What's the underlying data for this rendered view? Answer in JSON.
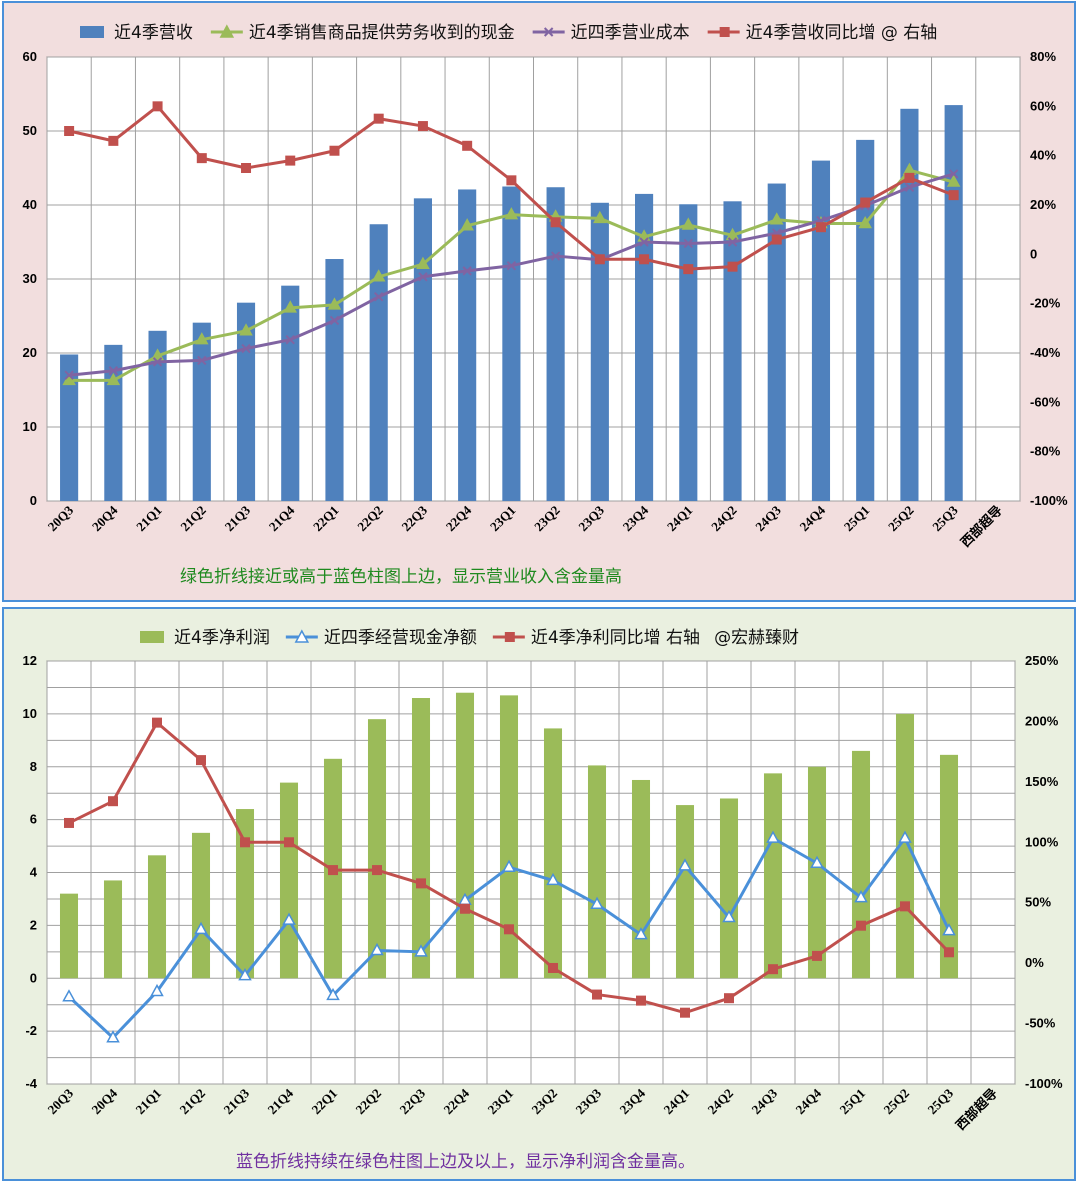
{
  "chart_data": [
    {
      "type": "bar+line",
      "categories": [
        "20Q3",
        "20Q4",
        "21Q1",
        "21Q2",
        "21Q3",
        "21Q4",
        "22Q1",
        "22Q2",
        "22Q3",
        "22Q4",
        "23Q1",
        "23Q2",
        "23Q3",
        "23Q4",
        "24Q1",
        "24Q2",
        "24Q3",
        "24Q4",
        "25Q1",
        "25Q2",
        "25Q3"
      ],
      "extra_tick": "西部超导",
      "ylim_left": [
        0,
        60
      ],
      "yticks_left": [
        0,
        10,
        20,
        30,
        40,
        50,
        60
      ],
      "ylim_right": [
        -100,
        80
      ],
      "yticks_right": [
        -100,
        -80,
        -60,
        -40,
        -20,
        0,
        20,
        40,
        60,
        80
      ],
      "yticks_right_labels": [
        "-100%",
        "-80%",
        "-60%",
        "-40%",
        "-20%",
        "0",
        "20%",
        "40%",
        "60%",
        "80%"
      ],
      "series": [
        {
          "name": "近4季营收",
          "kind": "bar",
          "axis": "left",
          "color": "#4f81bd",
          "values": [
            19.8,
            21.1,
            23.0,
            24.1,
            26.8,
            29.1,
            32.7,
            37.4,
            40.9,
            42.1,
            42.5,
            42.4,
            40.3,
            41.5,
            40.1,
            40.5,
            42.9,
            46.0,
            48.8,
            53.0,
            53.5
          ]
        },
        {
          "name": "近4季销售商品提供劳务收到的现金",
          "kind": "line",
          "axis": "left",
          "color": "#9bbb59",
          "marker": "triangle",
          "values": [
            16.3,
            16.3,
            19.6,
            21.8,
            23.0,
            26.1,
            26.5,
            30.3,
            32.0,
            37.2,
            38.7,
            38.4,
            38.2,
            35.7,
            37.3,
            35.9,
            38.0,
            37.5,
            37.5,
            44.7,
            43.1
          ]
        },
        {
          "name": "近四季营业成本",
          "kind": "line",
          "axis": "left",
          "color": "#8064a2",
          "marker": "x",
          "values": [
            17.0,
            17.6,
            18.8,
            19.0,
            20.6,
            21.8,
            24.4,
            27.6,
            30.3,
            31.1,
            31.8,
            33.1,
            32.6,
            35.0,
            34.8,
            35.0,
            36.2,
            37.9,
            39.9,
            42.4,
            44.2
          ]
        },
        {
          "name": "近4季营收同比增 @ 右轴",
          "kind": "line",
          "axis": "right",
          "color": "#c0504d",
          "marker": "square",
          "values": [
            50,
            46,
            60,
            39,
            35,
            38,
            42,
            55,
            52,
            44,
            30,
            13,
            -2,
            -2,
            -6,
            -5,
            6,
            11,
            21,
            31,
            24
          ]
        }
      ],
      "caption": "绿色折线接近或高于蓝色柱图上边，显示营业收入含金量高"
    },
    {
      "type": "bar+line",
      "categories": [
        "20Q3",
        "20Q4",
        "21Q1",
        "21Q2",
        "21Q3",
        "21Q4",
        "22Q1",
        "22Q2",
        "22Q3",
        "22Q4",
        "23Q1",
        "23Q2",
        "23Q3",
        "23Q4",
        "24Q1",
        "24Q2",
        "24Q3",
        "24Q4",
        "25Q1",
        "25Q2",
        "25Q3"
      ],
      "extra_tick": "西部超导",
      "ylim_left": [
        -4,
        12
      ],
      "yticks_left": [
        -4,
        -2,
        0,
        2,
        4,
        6,
        8,
        10,
        12
      ],
      "ylim_right": [
        -100,
        250
      ],
      "yticks_right": [
        -100,
        -50,
        0,
        50,
        100,
        150,
        200,
        250
      ],
      "yticks_right_labels": [
        "-100%",
        "-50%",
        "0%",
        "50%",
        "100%",
        "150%",
        "200%",
        "250%"
      ],
      "series": [
        {
          "name": "近4季净利润",
          "kind": "bar",
          "axis": "left",
          "color": "#9bbb59",
          "values": [
            3.2,
            3.7,
            4.65,
            5.5,
            6.4,
            7.4,
            8.3,
            9.8,
            10.6,
            10.8,
            10.7,
            9.45,
            8.05,
            7.5,
            6.55,
            6.8,
            7.75,
            8.0,
            8.6,
            10.0,
            8.45
          ]
        },
        {
          "name": "近四季经营现金净额",
          "kind": "line",
          "axis": "left",
          "color": "#4a90d9",
          "marker": "triangle",
          "values": [
            -0.7,
            -2.25,
            -0.5,
            1.85,
            0.1,
            2.2,
            -0.65,
            1.05,
            1.0,
            2.95,
            4.2,
            3.7,
            2.8,
            1.65,
            4.25,
            2.3,
            5.3,
            4.35,
            3.05,
            5.3,
            1.8
          ]
        },
        {
          "name": "近4季净利同比增 右轴",
          "kind": "line",
          "axis": "right",
          "color": "#c0504d",
          "marker": "square",
          "values": [
            116,
            134,
            199,
            168,
            100,
            100,
            77,
            77,
            66,
            45,
            28,
            -4,
            -26,
            -31,
            -41,
            -29,
            -5,
            6,
            31,
            47,
            9
          ]
        }
      ],
      "credit": "@宏赫臻财",
      "caption": "蓝色折线持续在绿色柱图上边及以上，显示净利润含金量高。"
    }
  ],
  "colors": {
    "panel1_bg": "#f2dede",
    "panel2_bg": "#eaf0e0",
    "caption1": "#1f8a1f",
    "caption2": "#7030a0",
    "negative_tick": "#d00000"
  }
}
